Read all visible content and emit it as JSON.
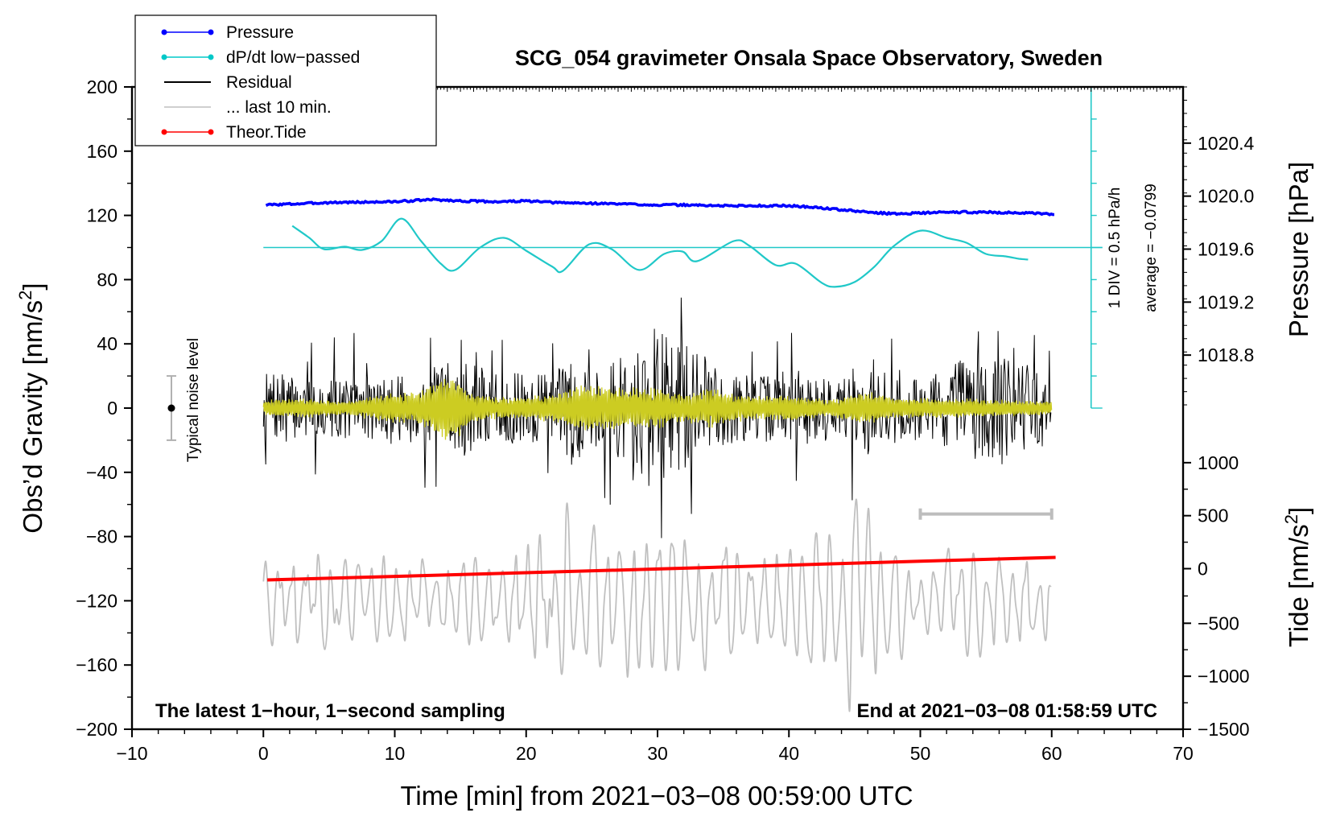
{
  "chart_data": {
    "type": "line",
    "title": "SCG_054 gravimeter Onsala Space Observatory, Sweden",
    "xlabel": "Time [min] from 2021−03−08 00:59:00 UTC",
    "ylabel_left_prefix": "Obs’d Gravity [nm/s",
    "ylabel_left_sup": "2",
    "ylabel_left_suffix": "]",
    "ylabel_right_top": "Pressure [hPa]",
    "ylabel_right_bottom_prefix": "Tide [nm/s",
    "ylabel_right_bottom_sup": "2",
    "ylabel_right_bottom_suffix": "]",
    "xlim": [
      -10,
      70
    ],
    "ylim_left": [
      -200,
      200
    ],
    "xticks": [
      "−10",
      "0",
      "10",
      "20",
      "30",
      "40",
      "50",
      "60",
      "70"
    ],
    "xtick_values": [
      -10,
      0,
      10,
      20,
      30,
      40,
      50,
      60,
      70
    ],
    "yticks_left": [
      "200",
      "160",
      "120",
      "80",
      "40",
      "0",
      "−40",
      "−80",
      "−120",
      "−160",
      "−200"
    ],
    "ytick_left_values": [
      200,
      160,
      120,
      80,
      40,
      0,
      -40,
      -80,
      -120,
      -160,
      -200
    ],
    "pressure_axis": {
      "ticks": [
        "1020.4",
        "1020.0",
        "1019.6",
        "1019.2",
        "1018.8"
      ],
      "tick_values": [
        1020.4,
        1020.0,
        1019.6,
        1019.2,
        1018.8
      ],
      "gravity_equiv": [
        165,
        132,
        99,
        66,
        33
      ]
    },
    "tide_axis": {
      "ticks": [
        "1000",
        "500",
        "0",
        "−500",
        "−1000",
        "−1500"
      ],
      "tick_values": [
        1000,
        500,
        0,
        -500,
        -1000,
        -1500
      ],
      "gravity_equiv": [
        -34,
        -67,
        -100,
        -134,
        -167,
        -200
      ]
    },
    "legend": [
      {
        "label": "Pressure",
        "color": "#0000ff",
        "marker": true
      },
      {
        "label": "dP/dt low−passed",
        "color": "#00c8c8",
        "marker": true
      },
      {
        "label": "Residual",
        "color": "#000000",
        "marker": false
      },
      {
        "label": "... last 10 min.",
        "color": "#bfbfbf",
        "marker": false
      },
      {
        "label": "Theor.Tide",
        "color": "#ff0000",
        "marker": true
      }
    ],
    "colors": {
      "pressure": "#0000ff",
      "dpdt": "#20c8c8",
      "residual": "#000000",
      "yellow": "#cccc22",
      "last10": "#c0c0c0",
      "tide": "#ff0000"
    },
    "annotations": {
      "noise_label": "Typical noise level",
      "noise_y": 0,
      "noise_half_range": 20,
      "noise_x": -7,
      "div_label": "1 DIV = 0.5 hPa/h",
      "average_label": "average = −0.0799",
      "bottom_left": "The latest 1−hour, 1−second sampling",
      "bottom_right": "End at 2021−03−08 01:58:59 UTC",
      "ten_min_bar_x": [
        50,
        60
      ],
      "ten_min_bar_y": -66,
      "dpdt_ruler_x": 63,
      "dpdt_ruler_y": [
        0,
        200
      ],
      "dpdt_zero_y": 100
    },
    "series": [
      {
        "name": "Pressure",
        "unit": "gravity-equivalent nm/s2",
        "x": [
          0.2,
          5,
          10,
          12,
          13,
          15,
          18,
          20,
          22,
          25,
          28,
          30,
          32,
          35,
          38,
          40,
          42,
          44,
          46,
          48,
          50,
          52,
          55,
          58,
          60.2
        ],
        "values": [
          126.5,
          128,
          128.5,
          129.5,
          129.8,
          129,
          128.5,
          129,
          128,
          127.5,
          127,
          126.5,
          126.5,
          126,
          126,
          126,
          125,
          123.5,
          122,
          121,
          121.5,
          122,
          122,
          121.5,
          120.5
        ]
      },
      {
        "name": "dP/dt low-passed",
        "unit": "gravity-equivalent nm/s2",
        "x": [
          2.2,
          3.5,
          4.6,
          6.2,
          7.5,
          9,
          10.5,
          12,
          13.5,
          14.6,
          16.5,
          18.3,
          20,
          22,
          22.8,
          24.8,
          26.5,
          28.6,
          30.5,
          31.9,
          33,
          35.8,
          37,
          39,
          40.5,
          42.5,
          43.5,
          45,
          46.5,
          48,
          50,
          52,
          53.5,
          55,
          56.5,
          57.5,
          58.2
        ],
        "values": [
          113.5,
          106,
          99,
          100.5,
          98.5,
          104,
          118,
          104,
          90,
          86,
          100,
          106,
          98,
          88,
          85.5,
          102,
          99,
          86,
          96,
          97.5,
          91.5,
          104,
          101,
          89,
          90,
          78,
          75.5,
          78.5,
          88,
          101,
          110.5,
          106,
          103,
          96,
          94.5,
          93,
          92.5
        ]
      },
      {
        "name": "Residual",
        "x_range": [
          0,
          60
        ],
        "seed": 7,
        "envelope_x": [
          0,
          5,
          10,
          13,
          15,
          18,
          20,
          22,
          24,
          26,
          28,
          29.5,
          31,
          33,
          35,
          38,
          40,
          42,
          44,
          46,
          48,
          50,
          52,
          54,
          56,
          58,
          60
        ],
        "envelope": [
          26,
          22,
          24,
          30,
          36,
          25,
          26,
          30,
          38,
          32,
          42,
          60,
          55,
          45,
          28,
          24,
          30,
          25,
          22,
          38,
          30,
          22,
          30,
          40,
          38,
          36,
          24
        ]
      },
      {
        "name": "Residual filtered (yellow)",
        "x_range": [
          0,
          60
        ],
        "seed": 13,
        "envelope_x": [
          0,
          3,
          6,
          9,
          12,
          13.5,
          14.5,
          16,
          19,
          22,
          24,
          26,
          28,
          30,
          32,
          34,
          36,
          38,
          40,
          43,
          46,
          48,
          52,
          56,
          60
        ],
        "envelope": [
          5,
          6,
          4,
          8,
          10,
          18,
          20,
          8,
          6,
          8,
          14,
          12,
          12,
          12,
          8,
          12,
          8,
          7,
          8,
          5,
          10,
          6,
          6,
          5,
          4
        ]
      },
      {
        "name": "... last 10 min.",
        "x_range": [
          0,
          60
        ],
        "seed": 29,
        "center": -120,
        "envelope_x": [
          0,
          5,
          10,
          15,
          20,
          22,
          24,
          26,
          28,
          30,
          32,
          35,
          38,
          40,
          42,
          44,
          45,
          46,
          48,
          50,
          52,
          55,
          58,
          60
        ],
        "envelope": [
          28,
          30,
          28,
          30,
          32,
          55,
          62,
          48,
          50,
          52,
          40,
          36,
          30,
          32,
          45,
          55,
          70,
          60,
          35,
          30,
          40,
          35,
          30,
          20
        ]
      },
      {
        "name": "Theor.Tide",
        "unit": "gravity-equivalent nm/s2",
        "x": [
          0.3,
          10,
          20,
          30,
          40,
          50,
          60.3
        ],
        "values": [
          -107,
          -104.8,
          -102.5,
          -100.2,
          -97.8,
          -95.4,
          -93
        ]
      }
    ]
  }
}
